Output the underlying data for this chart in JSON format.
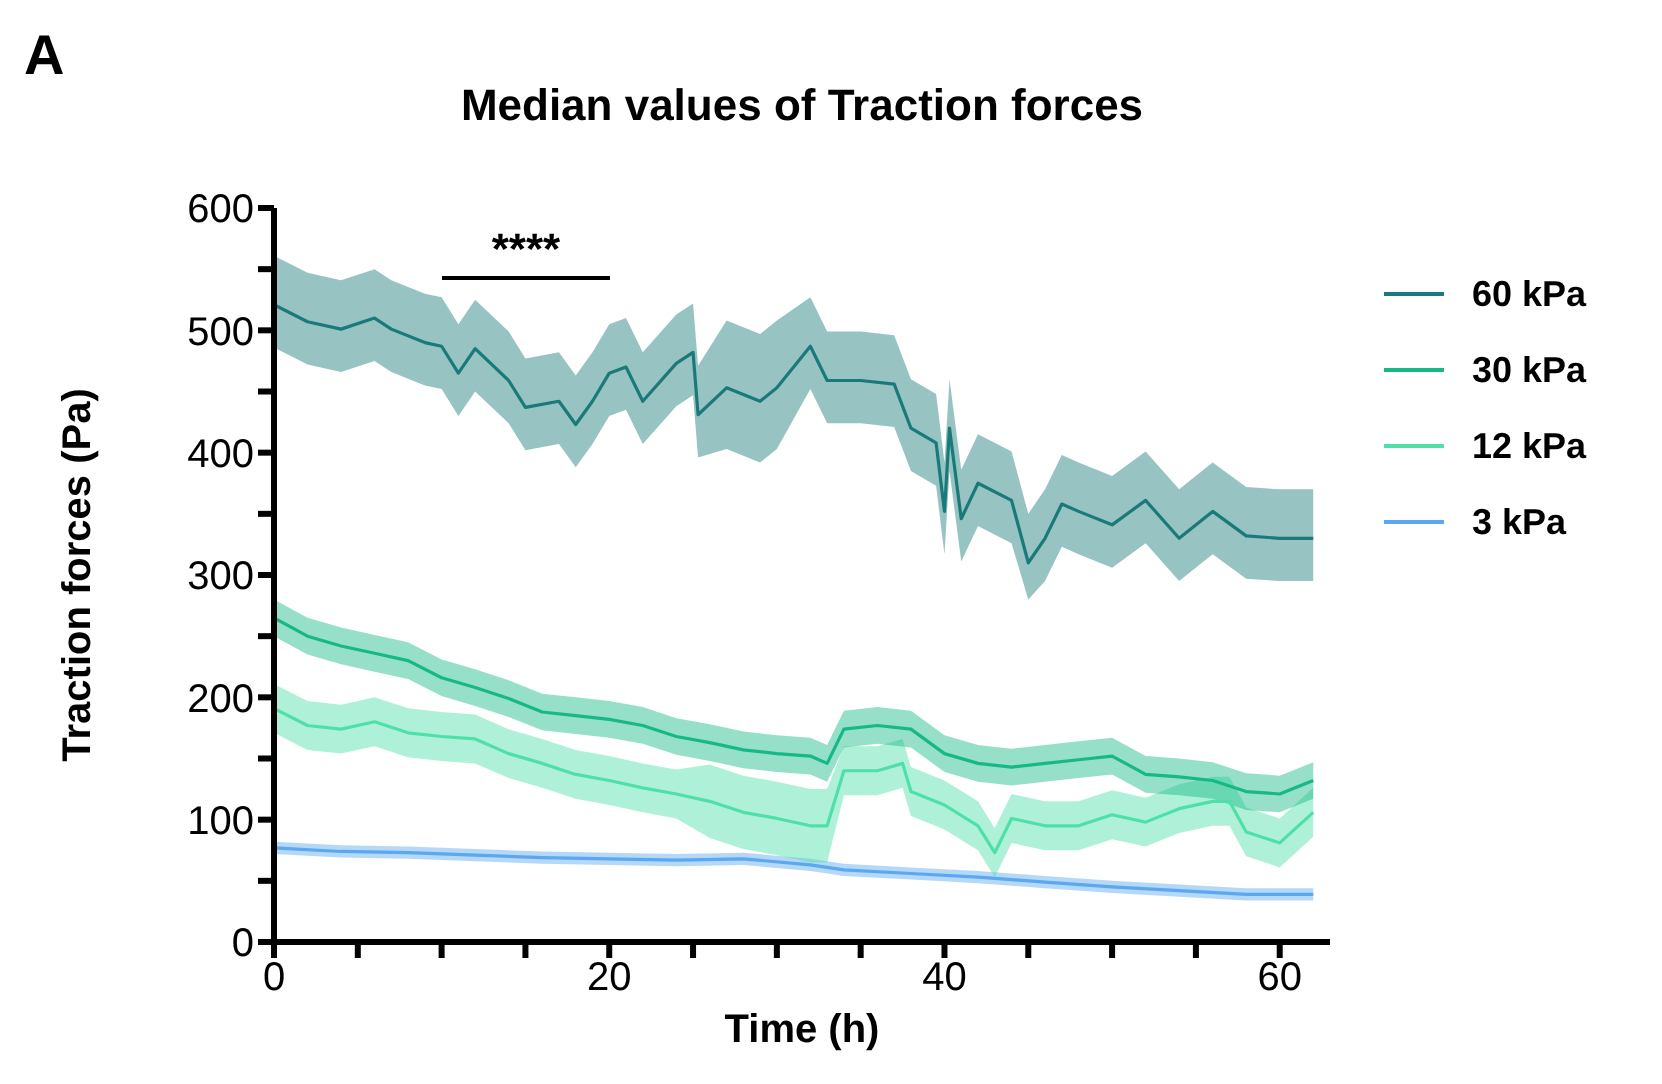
{
  "chart_data": {
    "type": "line",
    "title": "Median values of Traction forces",
    "xlabel": "Time (h)",
    "ylabel": "Traction forces (Pa)",
    "annotations": [
      "A",
      "****"
    ],
    "xlim": [
      0,
      63
    ],
    "xticks": [
      0,
      {
        "value": 5,
        "label": null
      },
      {
        "value": 10,
        "label": null
      },
      {
        "value": 15,
        "label": null
      },
      20,
      {
        "value": 25,
        "label": null
      },
      {
        "value": 30,
        "label": null
      },
      {
        "value": 35,
        "label": null
      },
      40,
      {
        "value": 45,
        "label": null
      },
      {
        "value": 50,
        "label": null
      },
      {
        "value": 55,
        "label": null
      },
      60
    ],
    "ylim": [
      0,
      600
    ],
    "yticks": [
      0,
      {
        "value": 50,
        "label": null
      },
      100,
      {
        "value": 150,
        "label": null
      },
      200,
      {
        "value": 250,
        "label": null
      },
      300,
      {
        "value": 350,
        "label": null
      },
      400,
      {
        "value": 450,
        "label": null
      },
      500,
      {
        "value": 550,
        "label": null
      },
      600
    ],
    "legend": "top right",
    "series": [
      {
        "name": "60 kPa",
        "color": "#1a7a7a",
        "x": [
          0,
          2,
          4,
          6,
          7,
          9,
          10,
          11,
          12,
          14,
          15,
          17,
          18,
          19,
          20,
          21,
          22,
          24,
          25,
          25.3,
          27,
          29,
          30,
          32,
          33,
          35,
          37,
          38,
          39.5,
          40,
          40.3,
          41,
          42,
          44,
          45,
          46,
          47,
          48,
          50,
          52,
          54,
          56,
          58,
          60,
          62
        ],
        "values": [
          521,
          507,
          501,
          510,
          501,
          490,
          487,
          465,
          485,
          459,
          437,
          442,
          423,
          442,
          465,
          470,
          442,
          473,
          482,
          431,
          453,
          442,
          453,
          487,
          459,
          459,
          456,
          420,
          408,
          352,
          420,
          346,
          375,
          361,
          310,
          330,
          358,
          352,
          341,
          361,
          330,
          352,
          332,
          330,
          330
        ],
        "lower": [
          486,
          472,
          466,
          475,
          466,
          455,
          452,
          430,
          450,
          424,
          402,
          407,
          388,
          407,
          430,
          435,
          407,
          438,
          447,
          396,
          403,
          392,
          403,
          452,
          424,
          424,
          421,
          385,
          373,
          317,
          385,
          311,
          340,
          326,
          280,
          295,
          323,
          317,
          306,
          326,
          295,
          317,
          297,
          295,
          295
        ],
        "upper": [
          561,
          547,
          541,
          550,
          541,
          530,
          527,
          505,
          525,
          499,
          477,
          482,
          463,
          482,
          505,
          510,
          482,
          513,
          522,
          471,
          508,
          497,
          508,
          527,
          499,
          499,
          496,
          460,
          448,
          392,
          460,
          386,
          415,
          401,
          350,
          370,
          398,
          392,
          381,
          401,
          370,
          392,
          372,
          370,
          370
        ]
      },
      {
        "name": "30 kPa",
        "color": "#17b887",
        "x": [
          0,
          2,
          4,
          6,
          8,
          10,
          12,
          14,
          16,
          18,
          20,
          22,
          24,
          26,
          28,
          30,
          32,
          33,
          34,
          36,
          38,
          40,
          42,
          44,
          46,
          48,
          50,
          52,
          54,
          56,
          58,
          60,
          62
        ],
        "values": [
          265,
          250,
          242,
          236,
          230,
          216,
          208,
          199,
          188,
          185,
          182,
          177,
          168,
          163,
          157,
          154,
          152,
          146,
          174,
          177,
          174,
          154,
          146,
          143,
          146,
          149,
          152,
          137,
          135,
          132,
          123,
          121,
          132
        ],
        "lower": [
          250,
          235,
          227,
          221,
          215,
          201,
          193,
          184,
          173,
          170,
          167,
          162,
          153,
          148,
          142,
          139,
          137,
          131,
          159,
          162,
          159,
          139,
          131,
          128,
          131,
          134,
          137,
          122,
          120,
          117,
          108,
          106,
          117
        ],
        "upper": [
          280,
          265,
          257,
          251,
          245,
          231,
          223,
          214,
          203,
          200,
          197,
          192,
          183,
          178,
          172,
          169,
          167,
          161,
          189,
          192,
          189,
          169,
          161,
          158,
          161,
          164,
          167,
          152,
          150,
          147,
          138,
          136,
          147
        ]
      },
      {
        "name": "12 kPa",
        "color": "#4ee0a8",
        "x": [
          0,
          2,
          4,
          6,
          8,
          10,
          12,
          14,
          16,
          18,
          20,
          22,
          24,
          26,
          28,
          30,
          32,
          33,
          34,
          36,
          37.5,
          38,
          40,
          42,
          43,
          44,
          46,
          48,
          50,
          52,
          54,
          56,
          57,
          58,
          60,
          62
        ],
        "values": [
          191,
          177,
          174,
          180,
          171,
          168,
          166,
          154,
          146,
          137,
          132,
          126,
          121,
          115,
          106,
          101,
          95,
          95,
          140,
          140,
          146,
          123,
          112,
          95,
          73,
          101,
          95,
          95,
          104,
          98,
          109,
          115,
          115,
          90,
          81,
          106
        ],
        "lower": [
          171,
          157,
          154,
          160,
          151,
          148,
          146,
          134,
          126,
          117,
          112,
          106,
          101,
          85,
          76,
          71,
          65,
          65,
          120,
          120,
          126,
          103,
          92,
          75,
          53,
          81,
          75,
          75,
          84,
          78,
          89,
          95,
          95,
          70,
          61,
          86
        ],
        "upper": [
          211,
          197,
          194,
          200,
          191,
          188,
          186,
          174,
          166,
          157,
          152,
          146,
          141,
          145,
          136,
          131,
          125,
          125,
          160,
          160,
          166,
          143,
          132,
          115,
          93,
          121,
          115,
          115,
          124,
          118,
          129,
          135,
          135,
          110,
          101,
          126
        ]
      },
      {
        "name": "3 kPa",
        "color": "#5aa8f0",
        "x": [
          0,
          4,
          8,
          12,
          16,
          20,
          24,
          28,
          32,
          34,
          38,
          42,
          46,
          50,
          54,
          58,
          62
        ],
        "values": [
          77,
          74,
          73,
          71,
          69,
          68,
          67,
          68,
          63,
          59,
          56,
          53,
          49,
          45,
          42,
          39,
          39
        ],
        "lower": [
          72,
          69,
          68,
          66,
          64,
          63,
          62,
          63,
          58,
          54,
          51,
          48,
          44,
          40,
          37,
          34,
          34
        ],
        "upper": [
          82,
          79,
          78,
          76,
          74,
          73,
          72,
          73,
          68,
          64,
          61,
          58,
          54,
          50,
          47,
          44,
          44
        ]
      }
    ]
  }
}
